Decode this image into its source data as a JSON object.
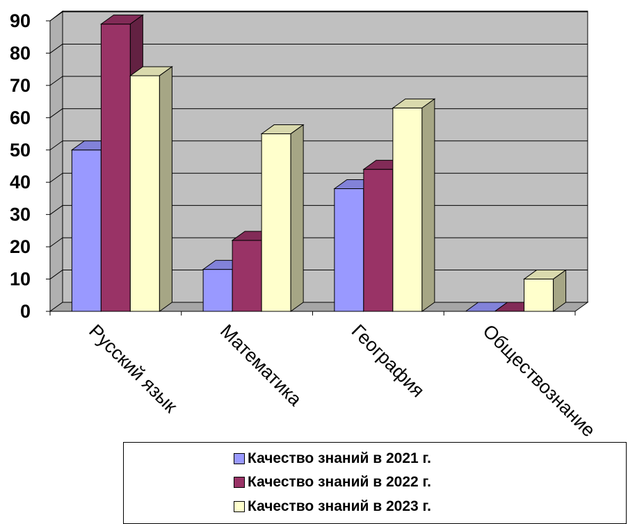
{
  "chart_data": {
    "type": "bar",
    "style": "3d-clustered-column",
    "categories": [
      "Русский язык",
      "Математика",
      "География",
      "Обществознание"
    ],
    "series": [
      {
        "name": "Качество знаний в 2021 г.",
        "color": "#9999FF",
        "values": [
          50,
          13,
          38,
          0
        ]
      },
      {
        "name": "Качество знаний в 2022 г.",
        "color": "#993366",
        "values": [
          89,
          22,
          44,
          0
        ]
      },
      {
        "name": "Качество знаний в 2023 г.",
        "color": "#FFFFCC",
        "values": [
          73,
          55,
          63,
          10
        ]
      }
    ],
    "ylim": [
      0,
      90
    ],
    "yticks": [
      "0",
      "10",
      "20",
      "30",
      "40",
      "50",
      "60",
      "70",
      "80",
      "90"
    ],
    "grid": true,
    "wall_color": "#C0C0C0",
    "legend_position": "bottom"
  }
}
